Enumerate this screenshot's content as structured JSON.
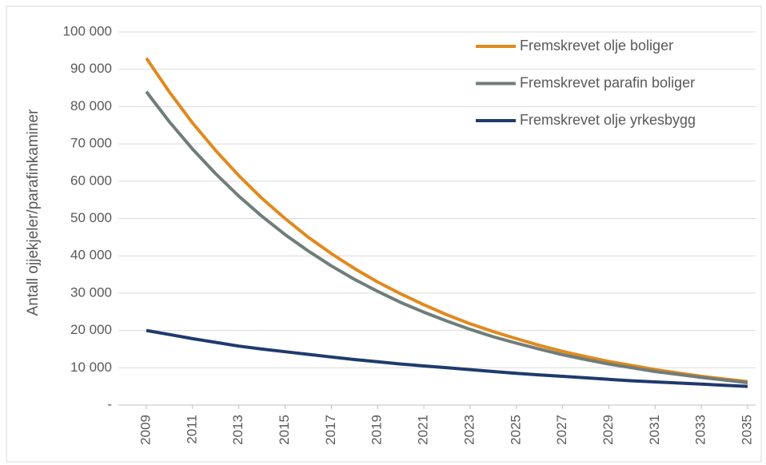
{
  "chart_data": {
    "type": "line",
    "y_label": "Antall ojjekjeler/parafinkaminer",
    "x": [
      2009,
      2010,
      2011,
      2012,
      2013,
      2014,
      2015,
      2016,
      2017,
      2018,
      2019,
      2020,
      2021,
      2022,
      2023,
      2024,
      2025,
      2026,
      2027,
      2028,
      2029,
      2030,
      2031,
      2032,
      2033,
      2034,
      2035
    ],
    "series": [
      {
        "name": "Fremskrevet olje boliger",
        "color": "#e08a1e",
        "values": [
          93000,
          83900,
          75600,
          68200,
          61500,
          55400,
          50000,
          45000,
          40600,
          36600,
          33000,
          29800,
          26900,
          24200,
          21800,
          19700,
          17800,
          16000,
          14400,
          13000,
          11700,
          10600,
          9500,
          8600,
          7700,
          7000,
          6300
        ]
      },
      {
        "name": "Fremskrevet parafin boliger",
        "color": "#6f7d7b",
        "values": [
          84000,
          75900,
          68600,
          62000,
          56000,
          50600,
          45700,
          41300,
          37300,
          33700,
          30500,
          27500,
          24900,
          22500,
          20300,
          18300,
          16600,
          15000,
          13500,
          12200,
          11000,
          10000,
          9000,
          8200,
          7400,
          6700,
          6000
        ]
      },
      {
        "name": "Fremskrevet olje yrkesbygg",
        "color": "#1f3a6e",
        "values": [
          20000,
          18900,
          17800,
          16800,
          15800,
          15000,
          14300,
          13600,
          12900,
          12200,
          11600,
          11000,
          10500,
          10000,
          9500,
          9000,
          8500,
          8100,
          7700,
          7300,
          6900,
          6500,
          6200,
          5900,
          5600,
          5300,
          5000
        ]
      }
    ],
    "xlim": [
      2009,
      2035
    ],
    "xticks": [
      2009,
      2011,
      2013,
      2015,
      2017,
      2019,
      2021,
      2023,
      2025,
      2027,
      2029,
      2031,
      2033,
      2035
    ],
    "ylim": [
      0,
      100000
    ],
    "yticks": [
      {
        "value": 0,
        "label": "-"
      },
      {
        "value": 10000,
        "label": "10 000"
      },
      {
        "value": 20000,
        "label": "20 000"
      },
      {
        "value": 30000,
        "label": "30 000"
      },
      {
        "value": 40000,
        "label": "40 000"
      },
      {
        "value": 50000,
        "label": "50 000"
      },
      {
        "value": 60000,
        "label": "60 000"
      },
      {
        "value": 70000,
        "label": "70 000"
      },
      {
        "value": 80000,
        "label": "80 000"
      },
      {
        "value": 90000,
        "label": "90 000"
      },
      {
        "value": 100000,
        "label": "100 000"
      }
    ],
    "grid": true,
    "legend": "top-right"
  }
}
